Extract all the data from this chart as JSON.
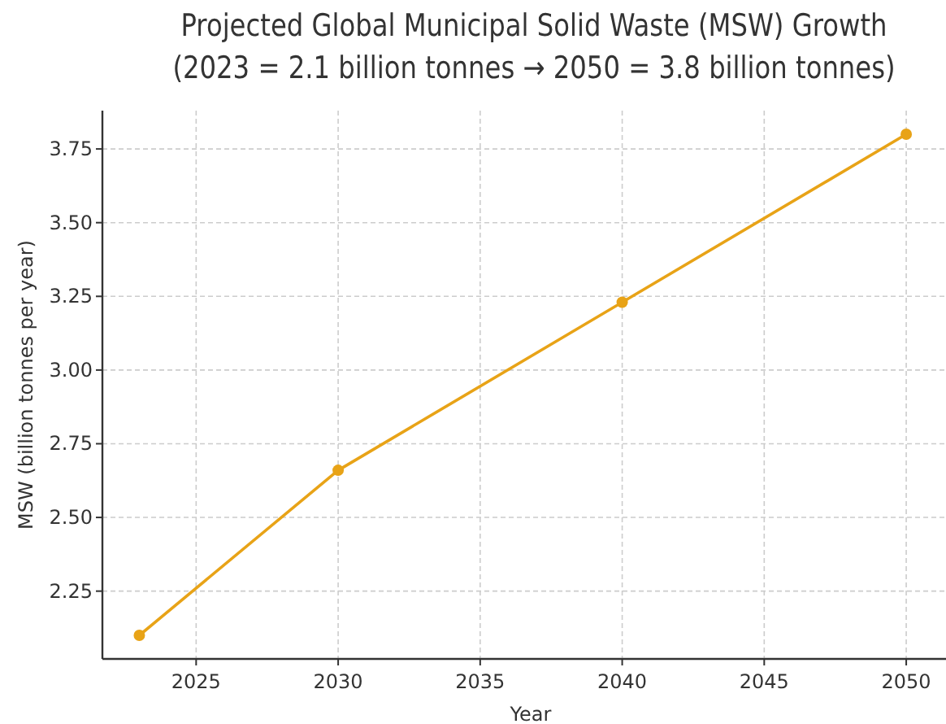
{
  "chart_data": {
    "type": "line",
    "title": "Projected Global Municipal Solid Waste (MSW) Growth\n(2023 = 2.1 billion tonnes → 2050 = 3.8 billion tonnes)",
    "xlabel": "Year",
    "ylabel": "MSW (billion tonnes per year)",
    "x": [
      2023,
      2030,
      2040,
      2050
    ],
    "series": [
      {
        "color": "#e8a317",
        "values": [
          2.1,
          2.66,
          3.23,
          3.8
        ]
      }
    ],
    "xlim": [
      2021.7,
      2051.4
    ],
    "xticks": [
      2025,
      2030,
      2035,
      2040,
      2045,
      2050
    ],
    "ylim": [
      2.02,
      3.88
    ],
    "yticks": [
      {
        "value": 2.25,
        "label": "2.25"
      },
      {
        "value": 2.5,
        "label": "2.50"
      },
      {
        "value": 2.75,
        "label": "2.75"
      },
      {
        "value": 3,
        "label": "3.00"
      },
      {
        "value": 3.25,
        "label": "3.25"
      },
      {
        "value": 3.5,
        "label": "3.50"
      },
      {
        "value": 3.75,
        "label": "3.75"
      }
    ],
    "grid": true,
    "marker": "circle",
    "line_style": "solid"
  }
}
